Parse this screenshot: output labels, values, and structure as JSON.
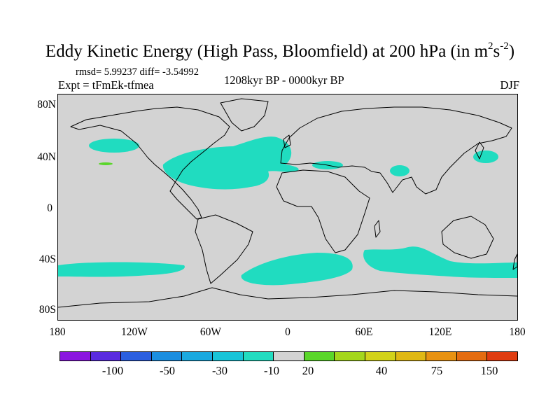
{
  "title": {
    "main": "Eddy Kinetic Energy (High Pass, Bloomfield) at 200 hPa (in m",
    "sup1": "2",
    "mid": "s",
    "sup2": "-2",
    "end": ")"
  },
  "stats": "rmsd= 5.99237 diff= -3.54992",
  "experiment": "Expt = tFmEk-tfmea",
  "period": "1208kyr BP - 0000kyr BP",
  "season": "DJF",
  "axes": {
    "lat_labels": [
      "80N",
      "40N",
      "0",
      "40S",
      "80S"
    ],
    "lon_labels": [
      "180",
      "120W",
      "60W",
      "0",
      "60E",
      "120E",
      "180"
    ]
  },
  "colorbar": {
    "colors": [
      "#8b16e0",
      "#5a2be0",
      "#2b5fe0",
      "#1c8ee0",
      "#1aa9e0",
      "#18c4d8",
      "#22dcc0",
      "#d3d3d3",
      "#5ad62a",
      "#a4d61c",
      "#d2d21a",
      "#e0b814",
      "#e89212",
      "#e46c10",
      "#e03c10"
    ],
    "labels": [
      "-100",
      "-50",
      "-30",
      "-10",
      "20",
      "40",
      "75",
      "150"
    ]
  },
  "map": {
    "land_color": "#d3d3d3",
    "anomaly_color": "#20dcc0",
    "positive_color": "#5ad62a"
  }
}
